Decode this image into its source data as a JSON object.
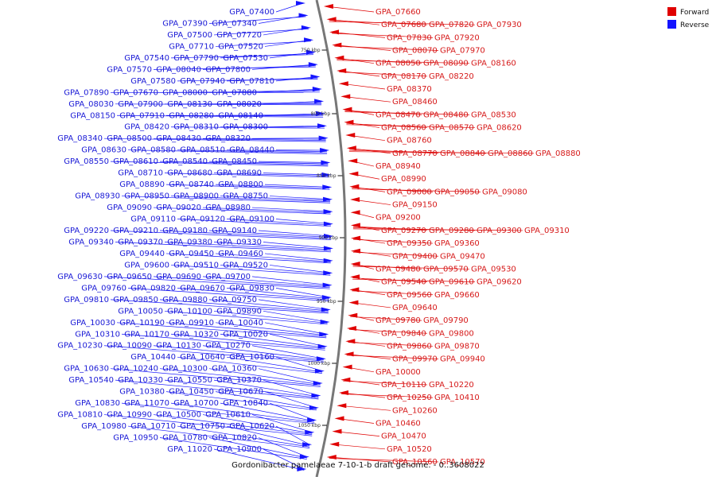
{
  "title": "Gordonibacter pamelaeae 7-10-1-b draft genome. - 0..3608022",
  "legend": [
    {
      "label": "Forward",
      "color": "#e00000"
    },
    {
      "label": "Reverse",
      "color": "#1414ff"
    }
  ],
  "colors": {
    "forward": "#e00000",
    "reverse": "#1414ff",
    "backbone": "#777777"
  },
  "ticks": [
    "750 kbp",
    "800 kbp",
    "850 kbp",
    "900 kbp",
    "950 kbp",
    "1000 kbp",
    "1050 kbp"
  ],
  "reverse_genes": [
    "GPA_07400",
    "GPA_07340",
    "GPA_07390",
    "GPA_07720",
    "GPA_07500",
    "GPA_07520",
    "GPA_07710",
    "GPA_07530",
    "GPA_07790",
    "GPA_07540",
    "GPA_07800",
    "GPA_08040",
    "GPA_07570",
    "GPA_07810",
    "GPA_07940",
    "GPA_07580",
    "GPA_07880",
    "GPA_08000",
    "GPA_07670",
    "GPA_07890",
    "GPA_08020",
    "GPA_08130",
    "GPA_07900",
    "GPA_08030",
    "GPA_08140",
    "GPA_08280",
    "GPA_07910",
    "GPA_08150",
    "GPA_08300",
    "GPA_08310",
    "GPA_08420",
    "GPA_08320",
    "GPA_08430",
    "GPA_08500",
    "GPA_08340",
    "GPA_08440",
    "GPA_08510",
    "GPA_08580",
    "GPA_08630",
    "GPA_08450",
    "GPA_08540",
    "GPA_08610",
    "GPA_08550",
    "GPA_08690",
    "GPA_08680",
    "GPA_08710",
    "GPA_08800",
    "GPA_08740",
    "GPA_08890",
    "GPA_08750",
    "GPA_08900",
    "GPA_08950",
    "GPA_08930",
    "GPA_08980",
    "GPA_09020",
    "GPA_09090",
    "GPA_09100",
    "GPA_09120",
    "GPA_09110",
    "GPA_09140",
    "GPA_09180",
    "GPA_09210",
    "GPA_09220",
    "GPA_09330",
    "GPA_09380",
    "GPA_09370",
    "GPA_09340",
    "GPA_09460",
    "GPA_09450",
    "GPA_09440",
    "GPA_09520",
    "GPA_09510",
    "GPA_09600",
    "GPA_09700",
    "GPA_09690",
    "GPA_09650",
    "GPA_09630",
    "GPA_09830",
    "GPA_09670",
    "GPA_09820",
    "GPA_09760",
    "GPA_09750",
    "GPA_09880",
    "GPA_09850",
    "GPA_09810",
    "GPA_09890",
    "GPA_10100",
    "GPA_10050",
    "GPA_10040",
    "GPA_09910",
    "GPA_10190",
    "GPA_10030",
    "GPA_10020",
    "GPA_10320",
    "GPA_10170",
    "GPA_10310",
    "GPA_10270",
    "GPA_10130",
    "GPA_10090",
    "GPA_10230",
    "GPA_10160",
    "GPA_10640",
    "GPA_10440",
    "GPA_10360",
    "GPA_10300",
    "GPA_10240",
    "GPA_10630",
    "GPA_10370",
    "GPA_10550",
    "GPA_10330",
    "GPA_10540",
    "GPA_10670",
    "GPA_10450",
    "GPA_10380",
    "GPA_10840",
    "GPA_10700",
    "GPA_11070",
    "GPA_10830",
    "GPA_10610",
    "GPA_10500",
    "GPA_10990",
    "GPA_10810",
    "GPA_10620",
    "GPA_10750",
    "GPA_10710",
    "GPA_10980",
    "GPA_10820",
    "GPA_10780",
    "GPA_10950",
    "GPA_10900",
    "GPA_11020"
  ],
  "forward_genes": [
    "GPA_07660",
    "GPA_07680",
    "GPA_07820",
    "GPA_07930",
    "GPA_07830",
    "GPA_07920",
    "GPA_08070",
    "GPA_07970",
    "GPA_08050",
    "GPA_08090",
    "GPA_08160",
    "GPA_08170",
    "GPA_08220",
    "GPA_08370",
    "GPA_08460",
    "GPA_08470",
    "GPA_08480",
    "GPA_08530",
    "GPA_08560",
    "GPA_08570",
    "GPA_08620",
    "GPA_08760",
    "GPA_08770",
    "GPA_08840",
    "GPA_08860",
    "GPA_08880",
    "GPA_08940",
    "GPA_08990",
    "GPA_09000",
    "GPA_09050",
    "GPA_09080",
    "GPA_09150",
    "GPA_09200",
    "GPA_09270",
    "GPA_09280",
    "GPA_09300",
    "GPA_09310",
    "GPA_09350",
    "GPA_09360",
    "GPA_09400",
    "GPA_09470",
    "GPA_09480",
    "GPA_09570",
    "GPA_09530",
    "GPA_09540",
    "GPA_09610",
    "GPA_09620",
    "GPA_09560",
    "GPA_09660",
    "GPA_09640",
    "GPA_09780",
    "GPA_09790",
    "GPA_09840",
    "GPA_09800",
    "GPA_09860",
    "GPA_09870",
    "GPA_09970",
    "GPA_09940",
    "GPA_10000",
    "GPA_10110",
    "GPA_10220",
    "GPA_10250",
    "GPA_10410",
    "GPA_10260",
    "GPA_10460",
    "GPA_10470",
    "GPA_10520",
    "GPA_10560",
    "GPA_10570"
  ]
}
